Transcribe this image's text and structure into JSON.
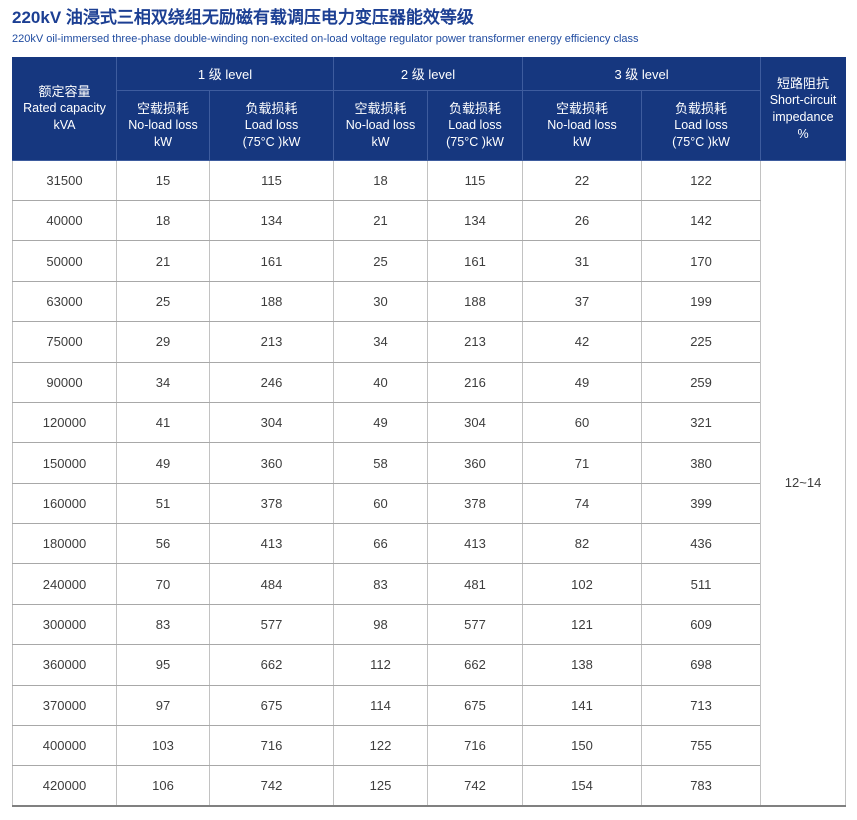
{
  "colors": {
    "header_bg": "#16377f",
    "header_divider": "#3e5c9e",
    "title": "#1c3f93",
    "subtitle": "#1f4ba0"
  },
  "header": {
    "title_zh": "220kV 油浸式三相双绕组无励磁有载调压电力变压器能效等级",
    "title_en": "220kV oil-immersed three-phase double-winding non-excited on-load voltage regulator power transformer energy efficiency class"
  },
  "table": {
    "capacity_header": {
      "zh": "额定容量",
      "en": "Rated capacity",
      "unit": "kVA"
    },
    "levels": [
      "1 级 level",
      "2 级 level",
      "3 级 level"
    ],
    "no_load_header": {
      "zh": "空载损耗",
      "en": "No-load loss",
      "unit": "kW"
    },
    "load_header": {
      "zh": "负载损耗",
      "en": "Load loss",
      "unit": "(75°C )kW"
    },
    "impedance_header": {
      "zh": "短路阻抗",
      "en_line1": "Short-circuit",
      "en_line2": "impedance",
      "unit": "%"
    },
    "impedance_value": "12~14",
    "rows": [
      [
        31500,
        15,
        115,
        18,
        115,
        22,
        122
      ],
      [
        40000,
        18,
        134,
        21,
        134,
        26,
        142
      ],
      [
        50000,
        21,
        161,
        25,
        161,
        31,
        170
      ],
      [
        63000,
        25,
        188,
        30,
        188,
        37,
        199
      ],
      [
        75000,
        29,
        213,
        34,
        213,
        42,
        225
      ],
      [
        90000,
        34,
        246,
        40,
        216,
        49,
        259
      ],
      [
        120000,
        41,
        304,
        49,
        304,
        60,
        321
      ],
      [
        150000,
        49,
        360,
        58,
        360,
        71,
        380
      ],
      [
        160000,
        51,
        378,
        60,
        378,
        74,
        399
      ],
      [
        180000,
        56,
        413,
        66,
        413,
        82,
        436
      ],
      [
        240000,
        70,
        484,
        83,
        481,
        102,
        511
      ],
      [
        300000,
        83,
        577,
        98,
        577,
        121,
        609
      ],
      [
        360000,
        95,
        662,
        112,
        662,
        138,
        698
      ],
      [
        370000,
        97,
        675,
        114,
        675,
        141,
        713
      ],
      [
        400000,
        103,
        716,
        122,
        716,
        150,
        755
      ],
      [
        420000,
        106,
        742,
        125,
        742,
        154,
        783
      ]
    ]
  }
}
